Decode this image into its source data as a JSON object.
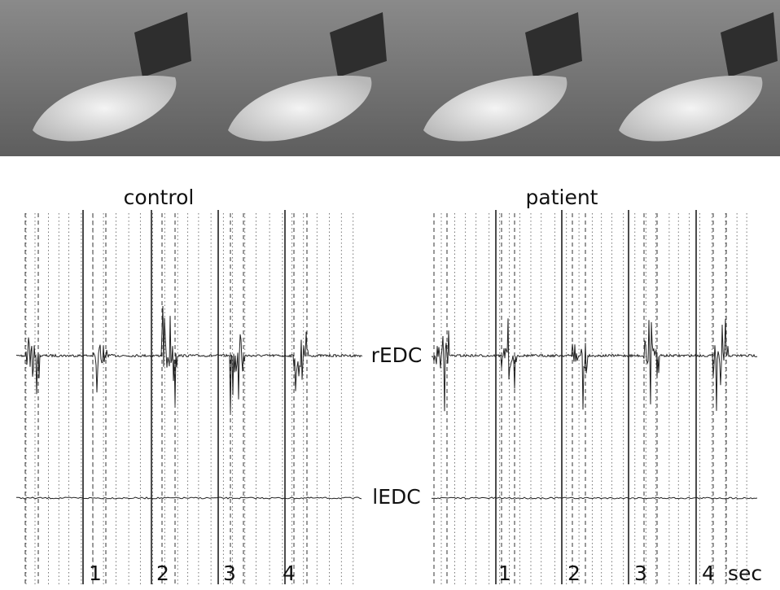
{
  "panels": [
    {
      "title": "control",
      "time_labels": [
        "1",
        "2",
        "3",
        "4"
      ]
    },
    {
      "title": "patient",
      "time_labels": [
        "1",
        "2",
        "3",
        "4"
      ],
      "unit": "sec"
    }
  ],
  "channels": [
    "rEDC",
    "lEDC"
  ]
}
